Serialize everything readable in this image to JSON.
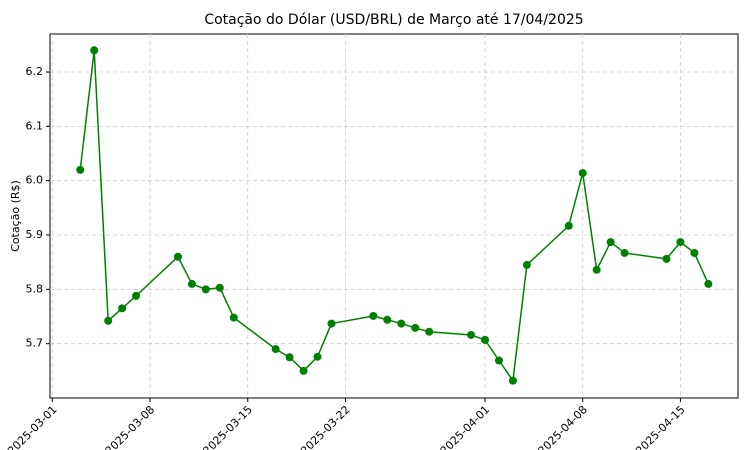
{
  "chart_data": {
    "type": "line",
    "title": "Cotação do Dólar (USD/BRL) de Março até 17/04/2025",
    "y_label": "Cotação (R$)",
    "x": [
      "2025-03-03",
      "2025-03-04",
      "2025-03-05",
      "2025-03-06",
      "2025-03-07",
      "2025-03-10",
      "2025-03-11",
      "2025-03-12",
      "2025-03-13",
      "2025-03-14",
      "2025-03-17",
      "2025-03-18",
      "2025-03-19",
      "2025-03-20",
      "2025-03-21",
      "2025-03-24",
      "2025-03-25",
      "2025-03-26",
      "2025-03-27",
      "2025-03-28",
      "2025-03-31",
      "2025-04-01",
      "2025-04-02",
      "2025-04-03",
      "2025-04-04",
      "2025-04-07",
      "2025-04-08",
      "2025-04-09",
      "2025-04-10",
      "2025-04-11",
      "2025-04-14",
      "2025-04-15",
      "2025-04-16",
      "2025-04-17"
    ],
    "series": [
      {
        "color": "#008000",
        "values": [
          6.02,
          6.24,
          5.742,
          5.765,
          5.788,
          5.86,
          5.81,
          5.8,
          5.803,
          5.748,
          5.69,
          5.675,
          5.65,
          5.676,
          5.737,
          5.751,
          5.744,
          5.737,
          5.729,
          5.722,
          5.716,
          5.707,
          5.669,
          5.632,
          5.845,
          5.917,
          6.014,
          5.836,
          5.887,
          5.867,
          5.856,
          5.887,
          5.867,
          5.81
        ]
      }
    ],
    "xlim": [
      "2025-02-28T20:00:00Z",
      "2025-04-19T03:00:00Z"
    ],
    "xticks": [
      "2025-03-01",
      "2025-03-08",
      "2025-03-15",
      "2025-03-22",
      "2025-04-01",
      "2025-04-08",
      "2025-04-15"
    ],
    "ylim": [
      5.6,
      6.27
    ],
    "yticks": [
      5.7,
      5.8,
      5.9,
      {
        "value": 6,
        "label": "6.0"
      },
      6.1,
      6.2
    ],
    "grid": true
  }
}
